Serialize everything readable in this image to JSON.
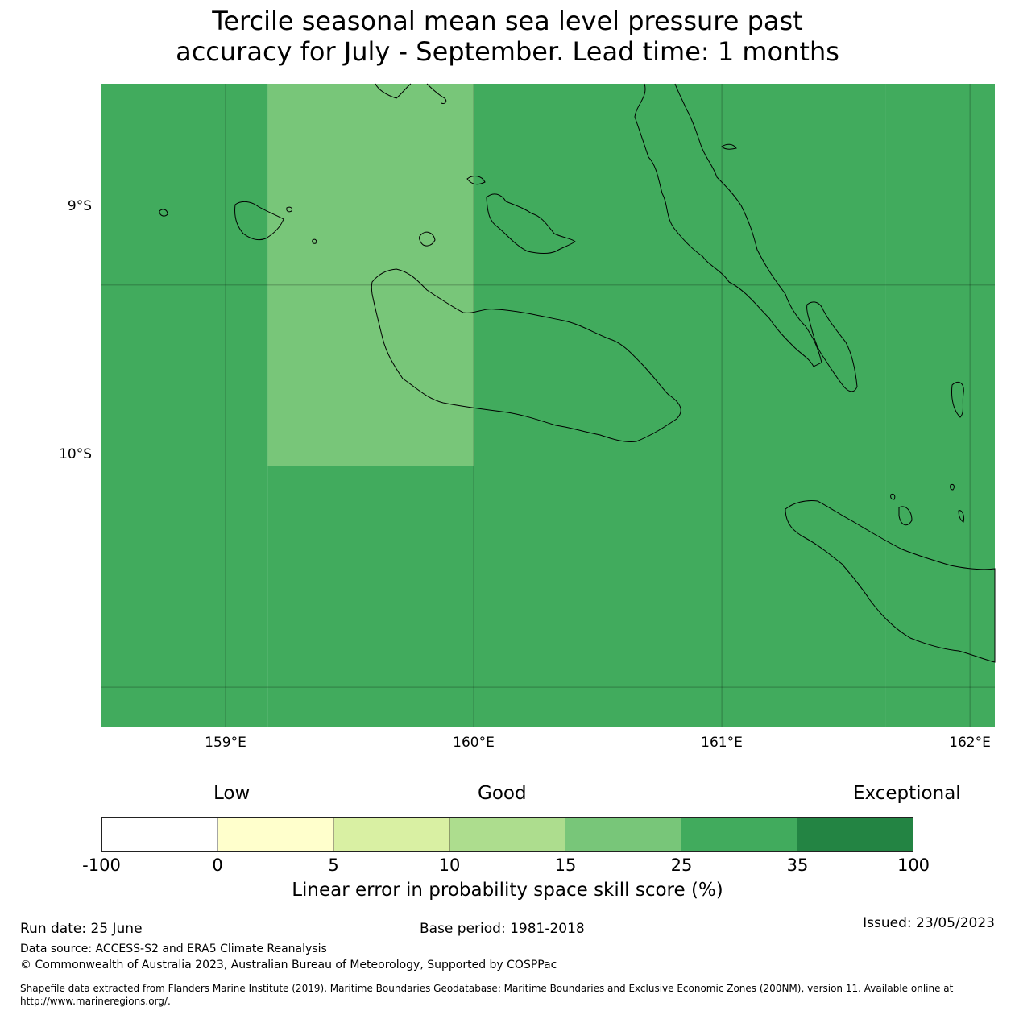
{
  "title": {
    "line1": "Tercile seasonal mean sea level pressure past",
    "line2": "accuracy for July - September. Lead time: 1 months"
  },
  "map": {
    "lon_range": [
      158.5,
      162.1
    ],
    "lat_range": [
      -10.1,
      -8.5
    ],
    "lat_labels": [
      "9°S",
      "10°S"
    ],
    "lon_labels": [
      "159°E",
      "160°E",
      "161°E",
      "162°E"
    ],
    "cells": [
      {
        "lon": [
          158.5,
          159.17
        ],
        "lat": [
          -10.1,
          -8.5
        ],
        "class": 5
      },
      {
        "lon": [
          159.17,
          160.0
        ],
        "lat": [
          -9.45,
          -8.5
        ],
        "class": 4
      },
      {
        "lon": [
          160.0,
          161.66
        ],
        "lat": [
          -10.1,
          -8.5
        ],
        "class": 5
      },
      {
        "lon": [
          161.66,
          162.1
        ],
        "lat": [
          -10.1,
          -8.5
        ],
        "class": 5
      },
      {
        "lon": [
          159.17,
          160.0
        ],
        "lat": [
          -10.1,
          -9.45
        ],
        "class": 5
      },
      {
        "lon": [
          161.66,
          162.1
        ],
        "lat": [
          -10.1,
          -10.57
        ],
        "class": 6
      }
    ]
  },
  "colorbar": {
    "category_low": "Low",
    "category_good": "Good",
    "category_exceptional": "Exceptional",
    "colors": [
      "#ffffff",
      "#ffffcc",
      "#d9f0a3",
      "#addd8e",
      "#78c679",
      "#41ab5d",
      "#238443"
    ],
    "ticks": [
      "-100",
      "0",
      "5",
      "10",
      "15",
      "25",
      "35",
      "100"
    ],
    "label": "Linear error in probability space skill score (%)"
  },
  "footer": {
    "run_date": "Run date: 25 June",
    "base_period": "Base period: 1981-2018",
    "issued": "Issued: 23/05/2023",
    "data_source": "Data source: ACCESS-S2 and ERA5 Climate Reanalysis",
    "copyright": "© Commonwealth of Australia 2023, Australian Bureau of Meteorology, Supported by COSPPac",
    "shapefile_line1": "Shapefile data extracted from Flanders Marine Institute (2019), Maritime Boundaries Geodatabase: Maritime Boundaries and Exclusive Economic Zones (200NM), version 11. Available online at",
    "shapefile_line2": "http://www.marineregions.org/."
  }
}
